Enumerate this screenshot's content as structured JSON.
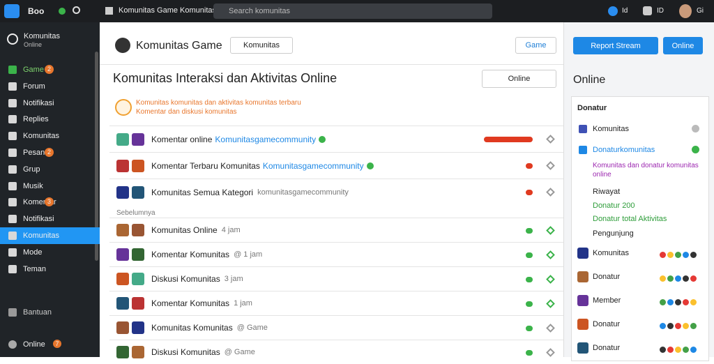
{
  "topbar": {
    "app": "Boo",
    "tab": "Komunitas Game Komunitas",
    "search": "Search komunitas",
    "user": "Gi",
    "lang": "ID",
    "status": "Id"
  },
  "sidebar": {
    "title": "Komunitas",
    "subtitle": "Online",
    "items": [
      {
        "label": "Game",
        "badge": "2"
      },
      {
        "label": "Forum"
      },
      {
        "label": "Notifikasi"
      },
      {
        "label": "Replies"
      },
      {
        "label": "Komunitas"
      },
      {
        "label": "Pesan",
        "badge": "2"
      },
      {
        "label": "Grup"
      },
      {
        "label": "Musik"
      },
      {
        "label": "Komentar",
        "badge": "3"
      },
      {
        "label": "Notifikasi"
      },
      {
        "label": "Komunitas",
        "active": true
      },
      {
        "label": "Mode"
      },
      {
        "label": "Teman"
      }
    ],
    "help": "Bantuan",
    "footer": {
      "label": "Online",
      "badge": "7"
    }
  },
  "main": {
    "title": "Komunitas Game",
    "filter": "Komunitas",
    "game_button": "Game",
    "heading": "Komunitas Interaksi dan Aktivitas Online",
    "dropdown": "Online",
    "notice": [
      "Komunitas komunitas dan aktivitas komunitas terbaru",
      "Komentar dan diskusi komunitas"
    ],
    "rows_top": [
      {
        "title": "Komentar online",
        "link": "Komunitasgamecommunity"
      },
      {
        "title": "Komentar Terbaru Komunitas",
        "link": "Komunitasgamecommunity"
      },
      {
        "title": "Komunitas Semua Kategori",
        "meta": "komunitasgamecommunity"
      }
    ],
    "section": "Sebelumnya",
    "rows": [
      {
        "title": "Komunitas Online",
        "meta": "4 jam"
      },
      {
        "title": "Komentar Komunitas",
        "meta": "@ 1 jam"
      },
      {
        "title": "Diskusi Komunitas",
        "meta": "3 jam"
      },
      {
        "title": "Komentar Komunitas",
        "meta": "1 jam"
      },
      {
        "title": "Komunitas Komunitas",
        "meta": "@ Game"
      },
      {
        "title": "Diskusi Komunitas",
        "meta": "@ Game"
      }
    ]
  },
  "panel": {
    "report": "Report Stream",
    "online_button": "Online",
    "heading": "Online",
    "card_title": "Donatur",
    "entries": [
      "Komunitas",
      "Donaturkomunitas"
    ],
    "note": "Komunitas dan donatur komunitas online",
    "history": "Riwayat",
    "stat1": "Donatur 200",
    "stat2": "Donatur total Aktivitas",
    "visitors": "Pengunjung",
    "members": [
      "Komunitas",
      "Donatur",
      "Member",
      "Donatur",
      "Donatur"
    ]
  }
}
